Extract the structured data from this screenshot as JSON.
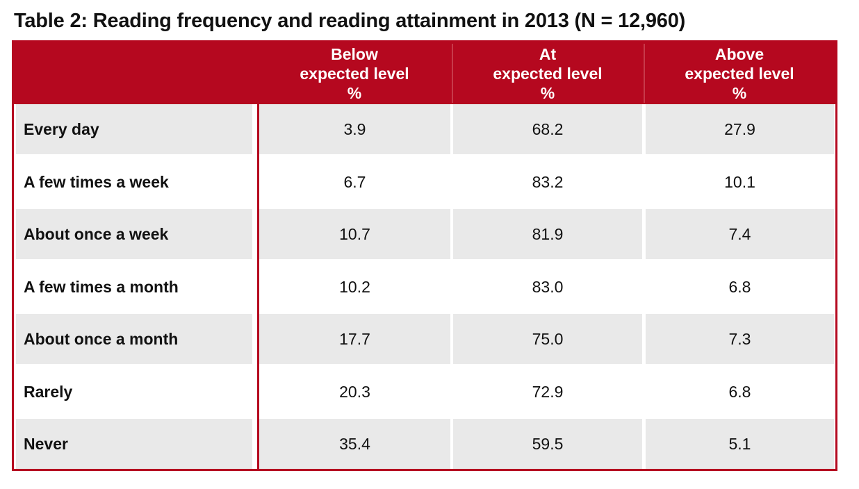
{
  "title": "Table 2: Reading frequency and reading attainment in 2013 (N = 12,960)",
  "colors": {
    "header_bg": "#b5081f",
    "shaded_row": "#e9e9e9",
    "text": "#111111"
  },
  "columns": [
    {
      "line1": "Below",
      "line2": "expected level",
      "line3": "%"
    },
    {
      "line1": "At",
      "line2": "expected level",
      "line3": "%"
    },
    {
      "line1": "Above",
      "line2": "expected level",
      "line3": "%"
    }
  ],
  "rows": [
    {
      "label": "Every day",
      "values": [
        "3.9",
        "68.2",
        "27.9"
      ],
      "shaded": true
    },
    {
      "label": "A few times a week",
      "values": [
        "6.7",
        "83.2",
        "10.1"
      ],
      "shaded": false
    },
    {
      "label": "About once a week",
      "values": [
        "10.7",
        "81.9",
        "7.4"
      ],
      "shaded": true
    },
    {
      "label": "A few times a month",
      "values": [
        "10.2",
        "83.0",
        "6.8"
      ],
      "shaded": false
    },
    {
      "label": "About once a month",
      "values": [
        "17.7",
        "75.0",
        "7.3"
      ],
      "shaded": true
    },
    {
      "label": "Rarely",
      "values": [
        "20.3",
        "72.9",
        "6.8"
      ],
      "shaded": false
    },
    {
      "label": "Never",
      "values": [
        "35.4",
        "59.5",
        "5.1"
      ],
      "shaded": true
    }
  ]
}
